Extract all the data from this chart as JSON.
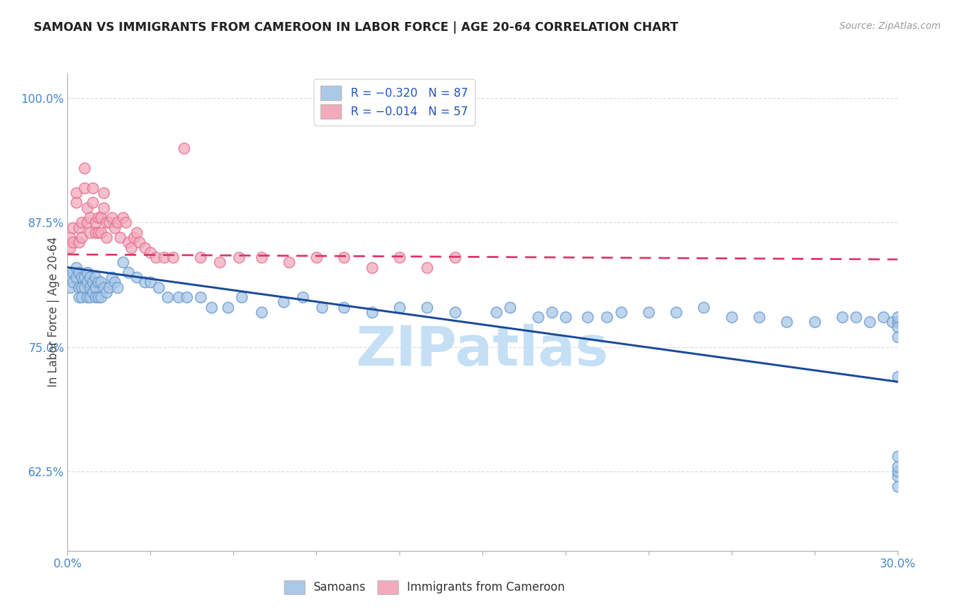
{
  "title": "SAMOAN VS IMMIGRANTS FROM CAMEROON IN LABOR FORCE | AGE 20-64 CORRELATION CHART",
  "source": "Source: ZipAtlas.com",
  "ylabel": "In Labor Force | Age 20-64",
  "ylabel_ticks": [
    "62.5%",
    "75.0%",
    "87.5%",
    "100.0%"
  ],
  "ylabel_values": [
    0.625,
    0.75,
    0.875,
    1.0
  ],
  "xmin": 0.0,
  "xmax": 0.3,
  "ymin": 0.545,
  "ymax": 1.025,
  "series1_name": "Samoans",
  "series2_name": "Immigrants from Cameroon",
  "series1_color": "#aac8e8",
  "series2_color": "#f4aabb",
  "series1_edge": "#6699cc",
  "series2_edge": "#e07090",
  "trendline1_color": "#1a4a99",
  "trendline2_color": "#dd3366",
  "legend1_color": "#aac8e8",
  "legend2_color": "#f4aabb",
  "legend_text_color": "#2255bb",
  "tick_color": "#4488cc",
  "watermark": "ZIPatlas",
  "watermark_color": "#c5dff5",
  "grid_color": "#dddddd",
  "samoans_x": [
    0.001,
    0.001,
    0.002,
    0.002,
    0.003,
    0.003,
    0.004,
    0.004,
    0.004,
    0.005,
    0.005,
    0.005,
    0.006,
    0.006,
    0.007,
    0.007,
    0.007,
    0.008,
    0.008,
    0.008,
    0.009,
    0.009,
    0.01,
    0.01,
    0.01,
    0.011,
    0.011,
    0.012,
    0.012,
    0.013,
    0.014,
    0.015,
    0.016,
    0.017,
    0.018,
    0.02,
    0.022,
    0.025,
    0.028,
    0.03,
    0.033,
    0.036,
    0.04,
    0.043,
    0.048,
    0.052,
    0.058,
    0.063,
    0.07,
    0.078,
    0.085,
    0.092,
    0.1,
    0.11,
    0.12,
    0.13,
    0.14,
    0.155,
    0.16,
    0.17,
    0.175,
    0.18,
    0.188,
    0.195,
    0.2,
    0.21,
    0.22,
    0.23,
    0.24,
    0.25,
    0.26,
    0.27,
    0.28,
    0.285,
    0.29,
    0.295,
    0.298,
    0.3,
    0.3,
    0.3,
    0.3,
    0.3,
    0.3,
    0.3,
    0.3,
    0.3,
    0.3
  ],
  "samoans_y": [
    0.82,
    0.81,
    0.825,
    0.815,
    0.83,
    0.82,
    0.825,
    0.81,
    0.8,
    0.82,
    0.81,
    0.8,
    0.82,
    0.81,
    0.825,
    0.815,
    0.8,
    0.82,
    0.81,
    0.8,
    0.815,
    0.805,
    0.82,
    0.81,
    0.8,
    0.815,
    0.8,
    0.815,
    0.8,
    0.81,
    0.805,
    0.81,
    0.82,
    0.815,
    0.81,
    0.835,
    0.825,
    0.82,
    0.815,
    0.815,
    0.81,
    0.8,
    0.8,
    0.8,
    0.8,
    0.79,
    0.79,
    0.8,
    0.785,
    0.795,
    0.8,
    0.79,
    0.79,
    0.785,
    0.79,
    0.79,
    0.785,
    0.785,
    0.79,
    0.78,
    0.785,
    0.78,
    0.78,
    0.78,
    0.785,
    0.785,
    0.785,
    0.79,
    0.78,
    0.78,
    0.775,
    0.775,
    0.78,
    0.78,
    0.775,
    0.78,
    0.775,
    0.775,
    0.77,
    0.78,
    0.76,
    0.62,
    0.625,
    0.63,
    0.61,
    0.64,
    0.72
  ],
  "cameroon_x": [
    0.001,
    0.001,
    0.002,
    0.002,
    0.003,
    0.003,
    0.004,
    0.004,
    0.005,
    0.005,
    0.006,
    0.006,
    0.007,
    0.007,
    0.008,
    0.008,
    0.009,
    0.009,
    0.01,
    0.01,
    0.011,
    0.011,
    0.012,
    0.012,
    0.013,
    0.013,
    0.014,
    0.014,
    0.015,
    0.016,
    0.017,
    0.018,
    0.019,
    0.02,
    0.021,
    0.022,
    0.023,
    0.024,
    0.025,
    0.026,
    0.028,
    0.03,
    0.032,
    0.035,
    0.038,
    0.042,
    0.048,
    0.055,
    0.062,
    0.07,
    0.08,
    0.09,
    0.1,
    0.11,
    0.12,
    0.13,
    0.14
  ],
  "cameroon_y": [
    0.86,
    0.85,
    0.87,
    0.855,
    0.905,
    0.895,
    0.87,
    0.855,
    0.875,
    0.86,
    0.93,
    0.91,
    0.89,
    0.875,
    0.88,
    0.865,
    0.91,
    0.895,
    0.875,
    0.865,
    0.88,
    0.865,
    0.88,
    0.865,
    0.905,
    0.89,
    0.875,
    0.86,
    0.875,
    0.88,
    0.87,
    0.875,
    0.86,
    0.88,
    0.875,
    0.855,
    0.85,
    0.86,
    0.865,
    0.855,
    0.85,
    0.845,
    0.84,
    0.84,
    0.84,
    0.95,
    0.84,
    0.835,
    0.84,
    0.84,
    0.835,
    0.84,
    0.84,
    0.83,
    0.84,
    0.83,
    0.84
  ],
  "trendline1_x0": 0.0,
  "trendline1_y0": 0.83,
  "trendline1_x1": 0.3,
  "trendline1_y1": 0.715,
  "trendline2_x0": 0.0,
  "trendline2_y0": 0.843,
  "trendline2_x1": 0.3,
  "trendline2_y1": 0.838
}
